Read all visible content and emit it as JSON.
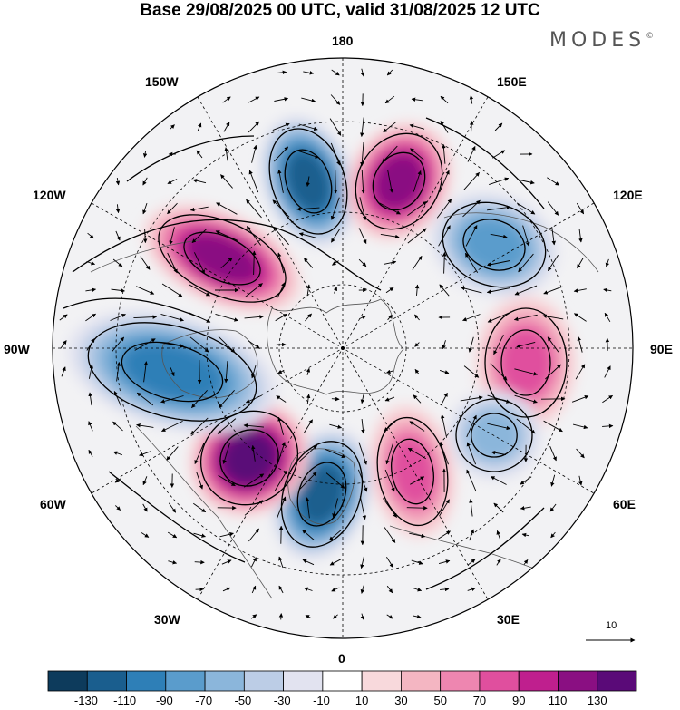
{
  "title": "Base 29/08/2025 00 UTC, valid 31/08/2025 12 UTC",
  "brand": "MODES",
  "brand_mark": "©",
  "longitude_labels": {
    "lon_180": "180",
    "lon_150W": "150W",
    "lon_150E": "150E",
    "lon_120W": "120W",
    "lon_120E": "120E",
    "lon_90W": "90W",
    "lon_90E": "90E",
    "lon_60W": "60W",
    "lon_60E": "60E",
    "lon_30W": "30W",
    "lon_30E": "30E",
    "lon_0": "0"
  },
  "reference_vector": {
    "label": "10"
  },
  "colorbar": {
    "labels": [
      "-130",
      "-110",
      "-90",
      "-70",
      "-50",
      "-30",
      "-10",
      "10",
      "30",
      "50",
      "70",
      "90",
      "110",
      "130"
    ],
    "colors": [
      "#0d3b5c",
      "#1a5e8e",
      "#2e7fb7",
      "#5a9ccc",
      "#8bb6db",
      "#bccde6",
      "#e2e3f0",
      "#ffffff",
      "#f8d9dc",
      "#f4b6c2",
      "#ee86b0",
      "#e04f9e",
      "#bf1f8e",
      "#8a0f82",
      "#5a0a78"
    ]
  },
  "anomaly_centers": [
    {
      "id": "low-pacific",
      "value": -110
    },
    {
      "id": "high-bering",
      "value": 120
    },
    {
      "id": "low-ne-siberia",
      "value": -70
    },
    {
      "id": "high-central-siberia",
      "value": 70
    },
    {
      "id": "low-west-siberia",
      "value": -50
    },
    {
      "id": "high-scandinavia",
      "value": 70
    },
    {
      "id": "low-north-atlantic",
      "value": -110
    },
    {
      "id": "high-greenland",
      "value": 130
    },
    {
      "id": "low-canada",
      "value": -90
    },
    {
      "id": "high-alaska",
      "value": 110
    }
  ]
}
